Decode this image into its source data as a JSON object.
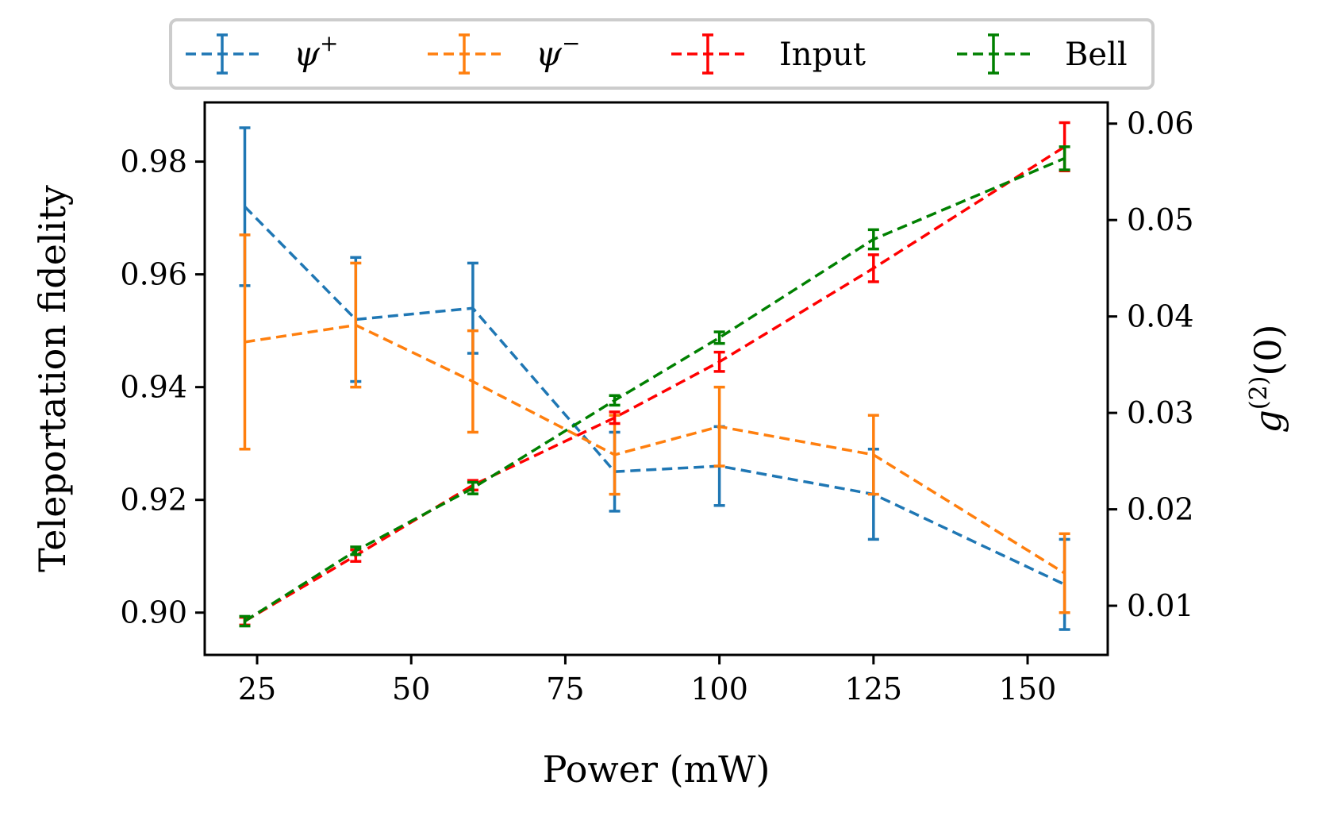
{
  "chart_data": {
    "type": "line",
    "xlabel": "Power (mW)",
    "ylabel_left": "Teleportation fidelity",
    "ylabel_right": "g(2)(0)",
    "ylabel_right_parts": {
      "base": "g",
      "sup": "(2)",
      "arg": "(0)"
    },
    "xlim": [
      16.5,
      163
    ],
    "ylim_left": [
      0.8925,
      0.9905
    ],
    "ylim_right": [
      0.0049,
      0.0622
    ],
    "x_ticks": [
      25,
      50,
      75,
      100,
      125,
      150
    ],
    "y_left_ticks": [
      "0.90",
      "0.92",
      "0.94",
      "0.96",
      "0.98"
    ],
    "y_right_ticks": [
      "0.01",
      "0.02",
      "0.03",
      "0.04",
      "0.05",
      "0.06"
    ],
    "legend_position": "top (outside, above plot)",
    "line_style": "dashed with error bars",
    "x": [
      23,
      41,
      60,
      83,
      100,
      125,
      156
    ],
    "series": [
      {
        "name": "ψ+",
        "label_base": "ψ",
        "label_sup": "+",
        "axis": "left",
        "color": "#1f77b4",
        "values": [
          0.972,
          0.952,
          0.954,
          0.925,
          0.926,
          0.921,
          0.905
        ],
        "errors": [
          0.014,
          0.011,
          0.008,
          0.007,
          0.007,
          0.008,
          0.008
        ]
      },
      {
        "name": "ψ−",
        "label_base": "ψ",
        "label_sup": "−",
        "axis": "left",
        "color": "#ff7f0e",
        "values": [
          0.948,
          0.951,
          0.941,
          0.928,
          0.933,
          0.928,
          0.907
        ],
        "errors": [
          0.019,
          0.011,
          0.009,
          0.007,
          0.007,
          0.007,
          0.007
        ]
      },
      {
        "name": "Input",
        "label_base": "Input",
        "label_sup": "",
        "axis": "right",
        "color": "#ff0000",
        "values": [
          0.0084,
          0.0152,
          0.0225,
          0.0295,
          0.0353,
          0.045,
          0.0576
        ],
        "errors": [
          0.0004,
          0.0006,
          0.0005,
          0.0006,
          0.001,
          0.0014,
          0.0025
        ]
      },
      {
        "name": "Bell",
        "label_base": "Bell",
        "label_sup": "",
        "axis": "right",
        "color": "#008000",
        "values": [
          0.0084,
          0.0157,
          0.0222,
          0.0313,
          0.0378,
          0.048,
          0.0564
        ],
        "errors": [
          0.0005,
          0.0004,
          0.0006,
          0.0005,
          0.0006,
          0.001,
          0.0012
        ]
      }
    ]
  }
}
